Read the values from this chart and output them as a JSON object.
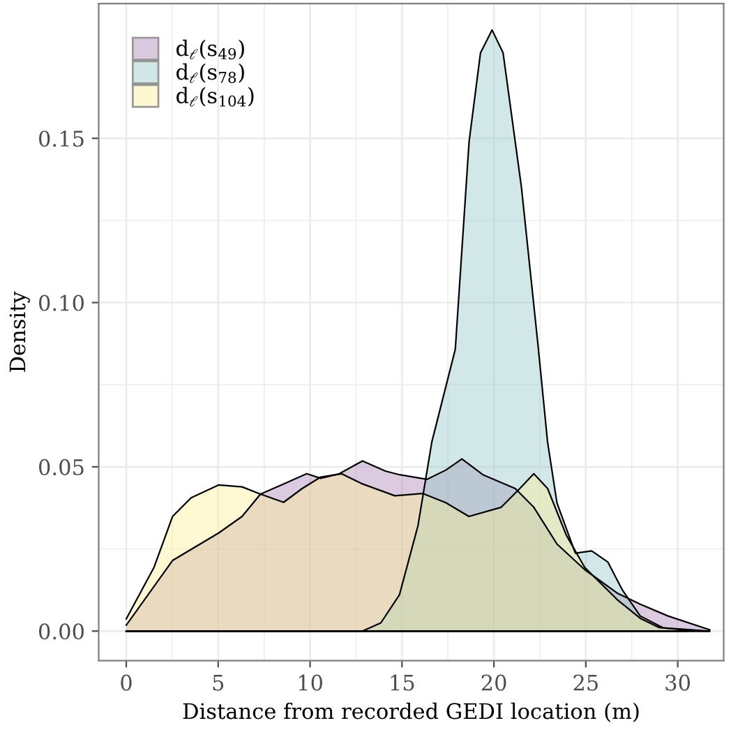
{
  "chart_data": {
    "type": "area",
    "xlabel": "Distance from recorded GEDI location (m)",
    "ylabel": "Density",
    "xlim": [
      -1.5,
      32.5
    ],
    "ylim": [
      -0.009,
      0.191
    ],
    "xticks": [
      0,
      5,
      10,
      15,
      20,
      25,
      30
    ],
    "yticks": [
      {
        "value": 0,
        "label": "0.00"
      },
      {
        "value": 0.05,
        "label": "0.05"
      },
      {
        "value": 0.1,
        "label": "0.10"
      },
      {
        "value": 0.15,
        "label": "0.15"
      }
    ],
    "grid": true,
    "legend": "top left",
    "series": [
      {
        "name": "d$_{ℓ}$(s$_{49}$)",
        "color": "#a77db1",
        "x": [
          0,
          2.52,
          5.04,
          6.3,
          7.3,
          8.56,
          9.82,
          10.58,
          11.59,
          12.85,
          14.1,
          14.86,
          16.37,
          17.38,
          18.26,
          19.4,
          21.16,
          22.17,
          23.43,
          24.94,
          26.7,
          27.96,
          29.47,
          31.74
        ],
        "values": [
          0.0018,
          0.0215,
          0.0299,
          0.0349,
          0.0417,
          0.0448,
          0.0479,
          0.0465,
          0.0479,
          0.0518,
          0.0487,
          0.0476,
          0.0462,
          0.049,
          0.0524,
          0.0476,
          0.0434,
          0.0377,
          0.0265,
          0.0187,
          0.0116,
          0.0082,
          0.0046,
          0.0004
        ]
      },
      {
        "name": "d$_{ℓ}$(s$_{78}$)",
        "color": "#8ec3c5",
        "x": [
          0,
          12.85,
          13.85,
          14.86,
          15.87,
          16.62,
          17.9,
          18.65,
          19.27,
          19.9,
          20.5,
          21.5,
          22.4,
          22.92,
          23.43,
          24.43,
          25.32,
          26.2,
          27.0,
          27.96,
          29.2,
          31.7
        ],
        "values": [
          0,
          0,
          0.0025,
          0.011,
          0.0321,
          0.0575,
          0.0858,
          0.149,
          0.176,
          0.183,
          0.176,
          0.135,
          0.087,
          0.0575,
          0.039,
          0.0237,
          0.0244,
          0.021,
          0.0124,
          0.0046,
          0.001,
          0
        ]
      },
      {
        "name": "d$_{ℓ}$(s$_{104}$)",
        "color": "#fcf091",
        "x": [
          0,
          1.51,
          2.52,
          3.53,
          5.04,
          6.3,
          7.3,
          8.56,
          9.57,
          10.58,
          11.71,
          12.85,
          14.61,
          16.12,
          17.38,
          18.64,
          20.4,
          21.41,
          22.17,
          22.92,
          23.93,
          24.94,
          26.7,
          27.96,
          28.97,
          30.48
        ],
        "values": [
          0.0037,
          0.0194,
          0.0349,
          0.0406,
          0.0445,
          0.0439,
          0.0417,
          0.0392,
          0.0434,
          0.0469,
          0.0479,
          0.0448,
          0.0412,
          0.0419,
          0.0391,
          0.0349,
          0.0377,
          0.0434,
          0.0479,
          0.0434,
          0.0293,
          0.0194,
          0.0096,
          0.0039,
          0.0011,
          0.0003
        ]
      }
    ]
  }
}
